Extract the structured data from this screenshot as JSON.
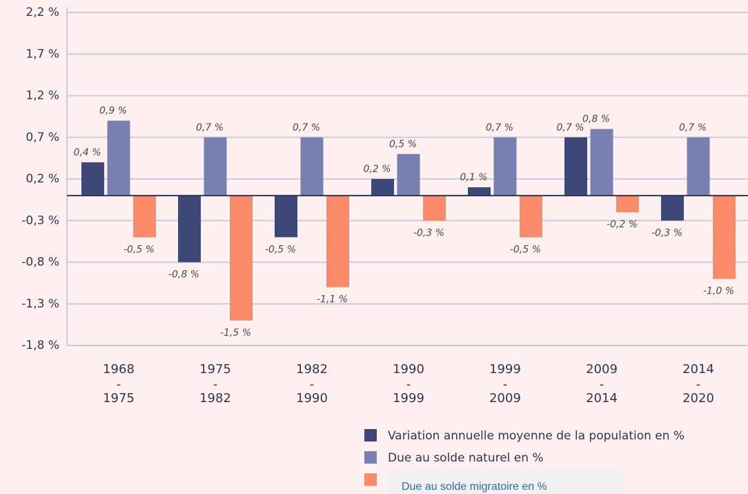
{
  "chart_data": {
    "type": "bar",
    "categories": [
      [
        "1968",
        "-",
        "1975"
      ],
      [
        "1975",
        "-",
        "1982"
      ],
      [
        "1982",
        "-",
        "1990"
      ],
      [
        "1990",
        "-",
        "1999"
      ],
      [
        "1999",
        "-",
        "2009"
      ],
      [
        "2009",
        "-",
        "2014"
      ],
      [
        "2014",
        "-",
        "2020"
      ]
    ],
    "series": [
      {
        "name": "Variation annuelle moyenne de la population en %",
        "color": "#3d4878",
        "values": [
          0.4,
          -0.8,
          -0.5,
          0.2,
          0.1,
          0.7,
          -0.3
        ],
        "value_labels": [
          "0,4 %",
          "-0,8 %",
          "-0,5 %",
          "0,2 %",
          "0,1 %",
          "0,7 %",
          "-0,3 %"
        ]
      },
      {
        "name": "Due au solde naturel en %",
        "color": "#7880b2",
        "values": [
          0.9,
          0.7,
          0.7,
          0.5,
          0.7,
          0.8,
          0.7
        ],
        "value_labels": [
          "0,9 %",
          "0,7 %",
          "0,7 %",
          "0,5 %",
          "0,7 %",
          "0,8 %",
          "0,7 %"
        ]
      },
      {
        "name": "Due au solde migratoire en %",
        "color": "#fa8a68",
        "values": [
          -0.5,
          -1.5,
          -1.1,
          -0.3,
          -0.5,
          -0.2,
          -1.0
        ],
        "value_labels": [
          "-0,5 %",
          "-1,5 %",
          "-1,1 %",
          "-0,3 %",
          "-0,5 %",
          "-0,2 %",
          "-1,0 %"
        ]
      }
    ],
    "ylim": [
      -1.8,
      2.2
    ],
    "yticks": [
      {
        "value": 2.2,
        "label": "2,2 %"
      },
      {
        "value": 1.7,
        "label": "1,7 %"
      },
      {
        "value": 1.2,
        "label": "1,2 %"
      },
      {
        "value": 0.7,
        "label": "0,7 %"
      },
      {
        "value": 0.2,
        "label": "0,2 %"
      },
      {
        "value": -0.3,
        "label": "-0,3 %"
      },
      {
        "value": -0.8,
        "label": "-0,8 %"
      },
      {
        "value": -1.3,
        "label": "-1,3 %"
      },
      {
        "value": -1.8,
        "label": "-1,8 %"
      }
    ],
    "grid": true
  }
}
